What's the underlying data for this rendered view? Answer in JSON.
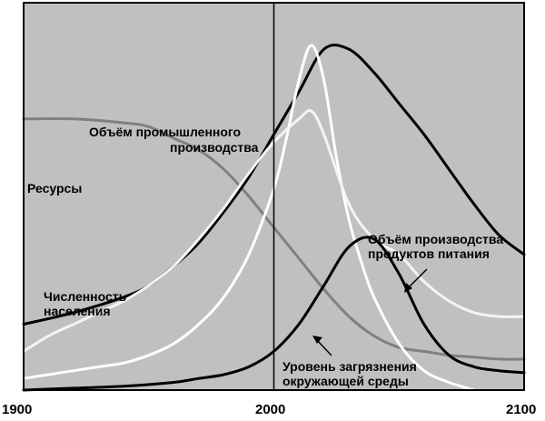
{
  "chart_data": {
    "type": "line",
    "title": "",
    "xlabel": "",
    "ylabel": "",
    "xlim": [
      1900,
      2100
    ],
    "ylim": [
      0,
      100
    ],
    "x_ticks": [
      1900,
      2000,
      2100
    ],
    "x_tick_labels": [
      "1900",
      "2000",
      "2100"
    ],
    "grid": false,
    "reference_line_x": 2000,
    "series": [
      {
        "name": "Ресурсы",
        "color": "#808080",
        "x": [
          1900,
          1920,
          1940,
          1950,
          1960,
          1970,
          1980,
          1990,
          2000,
          2010,
          2020,
          2030,
          2040,
          2050,
          2060,
          2070,
          2080,
          2090,
          2100
        ],
        "y": [
          70,
          70,
          69,
          68,
          65,
          62,
          57,
          50,
          42,
          34,
          26,
          19,
          14,
          11,
          10,
          9,
          8.5,
          8,
          8
        ]
      },
      {
        "name": "Численность населения",
        "color": "#000000",
        "x": [
          1900,
          1920,
          1940,
          1950,
          1960,
          1970,
          1980,
          1990,
          2000,
          2010,
          2020,
          2030,
          2040,
          2050,
          2060,
          2070,
          2080,
          2090,
          2100
        ],
        "y": [
          17,
          20,
          24,
          27,
          32,
          38,
          46,
          55,
          66,
          77,
          88,
          88,
          82,
          74,
          66,
          57,
          48,
          40,
          35
        ]
      },
      {
        "name": "Объём промышленного производства",
        "color": "#ffffff",
        "x": [
          1900,
          1910,
          1920,
          1930,
          1940,
          1950,
          1960,
          1970,
          1980,
          1990,
          2000,
          2005,
          2010,
          2015,
          2020,
          2025,
          2030,
          2035,
          2040,
          2050,
          2060,
          2070,
          2080
        ],
        "y": [
          3,
          4,
          5,
          6,
          7,
          9,
          12,
          17,
          24,
          35,
          52,
          65,
          80,
          89,
          80,
          60,
          44,
          33,
          24,
          12,
          5,
          2,
          0
        ]
      },
      {
        "name": "Объём производства продуктов питания",
        "color": "#f4f4f4",
        "x": [
          1900,
          1910,
          1920,
          1930,
          1940,
          1950,
          1960,
          1970,
          1980,
          1990,
          2000,
          2010,
          2015,
          2020,
          2030,
          2040,
          2050,
          2060,
          2070,
          2080,
          2090,
          2100
        ],
        "y": [
          10,
          14,
          17,
          20,
          23,
          27,
          32,
          39,
          47,
          56,
          64,
          70,
          72,
          66,
          48,
          39,
          35,
          28,
          23,
          20,
          19,
          19
        ]
      },
      {
        "name": "Уровень загрязнения окружающей среды",
        "color": "#000000",
        "x": [
          1900,
          1920,
          1940,
          1960,
          1970,
          1980,
          1990,
          2000,
          2010,
          2020,
          2030,
          2040,
          2050,
          2060,
          2070,
          2080,
          2090,
          2100
        ],
        "y": [
          0,
          0.5,
          1,
          2,
          3,
          4,
          6,
          10,
          17,
          27,
          37,
          39,
          30,
          17,
          9,
          6,
          5,
          4.5
        ]
      }
    ],
    "annotations": [
      {
        "lines": [
          "Объём промышленного",
          "производства"
        ]
      },
      {
        "lines": [
          "Ресурсы"
        ]
      },
      {
        "lines": [
          "Численность",
          "населения"
        ]
      },
      {
        "lines": [
          "Объём производства",
          "продуктов питания"
        ]
      },
      {
        "lines": [
          "Уровень загрязнения",
          "окружающей среды"
        ]
      }
    ]
  }
}
